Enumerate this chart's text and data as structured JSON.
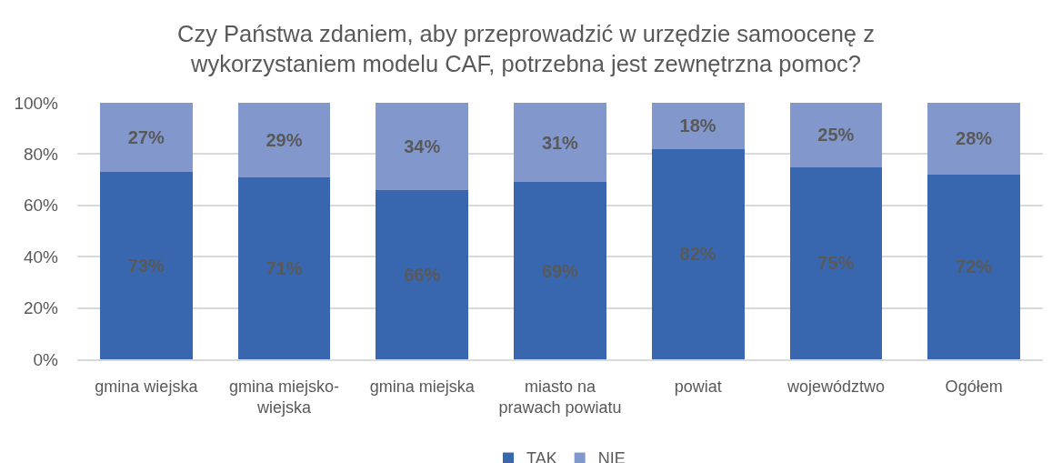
{
  "chart_data": {
    "type": "bar",
    "title": "Czy Państwa zdaniem, aby przeprowadzić w urzędzie samoocenę z wykorzystaniem modelu CAF, potrzebna jest zewnętrzna pomoc?",
    "categories": [
      "gmina wiejska",
      "gmina miejsko-wiejska",
      "gmina miejska",
      "miasto na prawach powiatu",
      "powiat",
      "województwo",
      "Ogółem"
    ],
    "series": [
      {
        "name": "TAK",
        "color": "#3867b0",
        "values": [
          73,
          71,
          66,
          69,
          82,
          75,
          72
        ],
        "value_labels": [
          "73%",
          "71%",
          "66%",
          "69%",
          "82%",
          "75%",
          "72%"
        ]
      },
      {
        "name": "NIE",
        "color": "#8298cc",
        "values": [
          27,
          29,
          34,
          31,
          18,
          25,
          28
        ],
        "value_labels": [
          "27%",
          "29%",
          "34%",
          "31%",
          "18%",
          "25%",
          "28%"
        ]
      }
    ],
    "stacked": true,
    "ylim": [
      0,
      100
    ],
    "yticks": [
      {
        "value": 0,
        "label": "0%"
      },
      {
        "value": 20,
        "label": "20%"
      },
      {
        "value": 40,
        "label": "40%"
      },
      {
        "value": 60,
        "label": "60%"
      },
      {
        "value": 80,
        "label": "80%"
      },
      {
        "value": 100,
        "label": "100%"
      }
    ],
    "grid": "y",
    "legend": "bottom"
  }
}
